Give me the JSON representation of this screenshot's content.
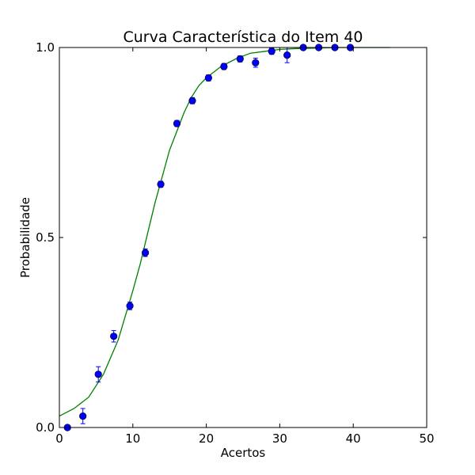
{
  "chart_data": {
    "type": "scatter",
    "title": "Curva Característica do Item 40",
    "xlabel": "Acertos",
    "ylabel": "Probabilidade",
    "xlim": [
      0,
      50
    ],
    "ylim": [
      0.0,
      1.0
    ],
    "x_ticks": [
      0,
      10,
      20,
      30,
      40,
      50
    ],
    "y_ticks": [
      0.0,
      0.5,
      1.0
    ],
    "x_tick_labels": [
      "0",
      "10",
      "20",
      "30",
      "40",
      "50"
    ],
    "y_tick_labels": [
      "0.0",
      "0.5",
      "1.0"
    ],
    "grid": false,
    "legend": "none",
    "series": [
      {
        "kind": "points_with_error_bars",
        "color": "#0000ff",
        "x": [
          1.1,
          3.2,
          5.3,
          7.4,
          9.6,
          11.7,
          13.8,
          16.0,
          18.1,
          20.3,
          22.4,
          24.6,
          26.7,
          28.9,
          31.0,
          33.2,
          35.3,
          37.5,
          39.6
        ],
        "y": [
          0.0,
          0.03,
          0.14,
          0.24,
          0.32,
          0.46,
          0.64,
          0.8,
          0.86,
          0.92,
          0.95,
          0.97,
          0.96,
          0.99,
          0.98,
          1.0,
          1.0,
          1.0,
          1.0
        ],
        "y_err": [
          0.005,
          0.02,
          0.02,
          0.015,
          0.01,
          0.01,
          0.008,
          0.008,
          0.008,
          0.008,
          0.008,
          0.008,
          0.012,
          0.008,
          0.02,
          0.003,
          0.003,
          0.003,
          0.003
        ]
      },
      {
        "kind": "fitted_curve",
        "color": "#008000",
        "x_range": [
          0,
          45
        ],
        "curve_x": [
          0,
          2,
          4,
          6,
          8,
          10,
          11,
          12,
          13,
          14,
          15,
          16,
          17,
          18,
          19,
          20,
          22,
          24,
          26,
          28,
          30,
          32,
          34,
          36,
          38,
          40,
          42,
          45
        ],
        "curve_y": [
          0.03,
          0.05,
          0.08,
          0.14,
          0.23,
          0.36,
          0.43,
          0.51,
          0.59,
          0.66,
          0.73,
          0.78,
          0.83,
          0.87,
          0.9,
          0.92,
          0.95,
          0.97,
          0.985,
          0.99,
          0.995,
          0.997,
          0.998,
          0.999,
          1.0,
          1.0,
          1.0,
          1.0
        ]
      }
    ]
  }
}
